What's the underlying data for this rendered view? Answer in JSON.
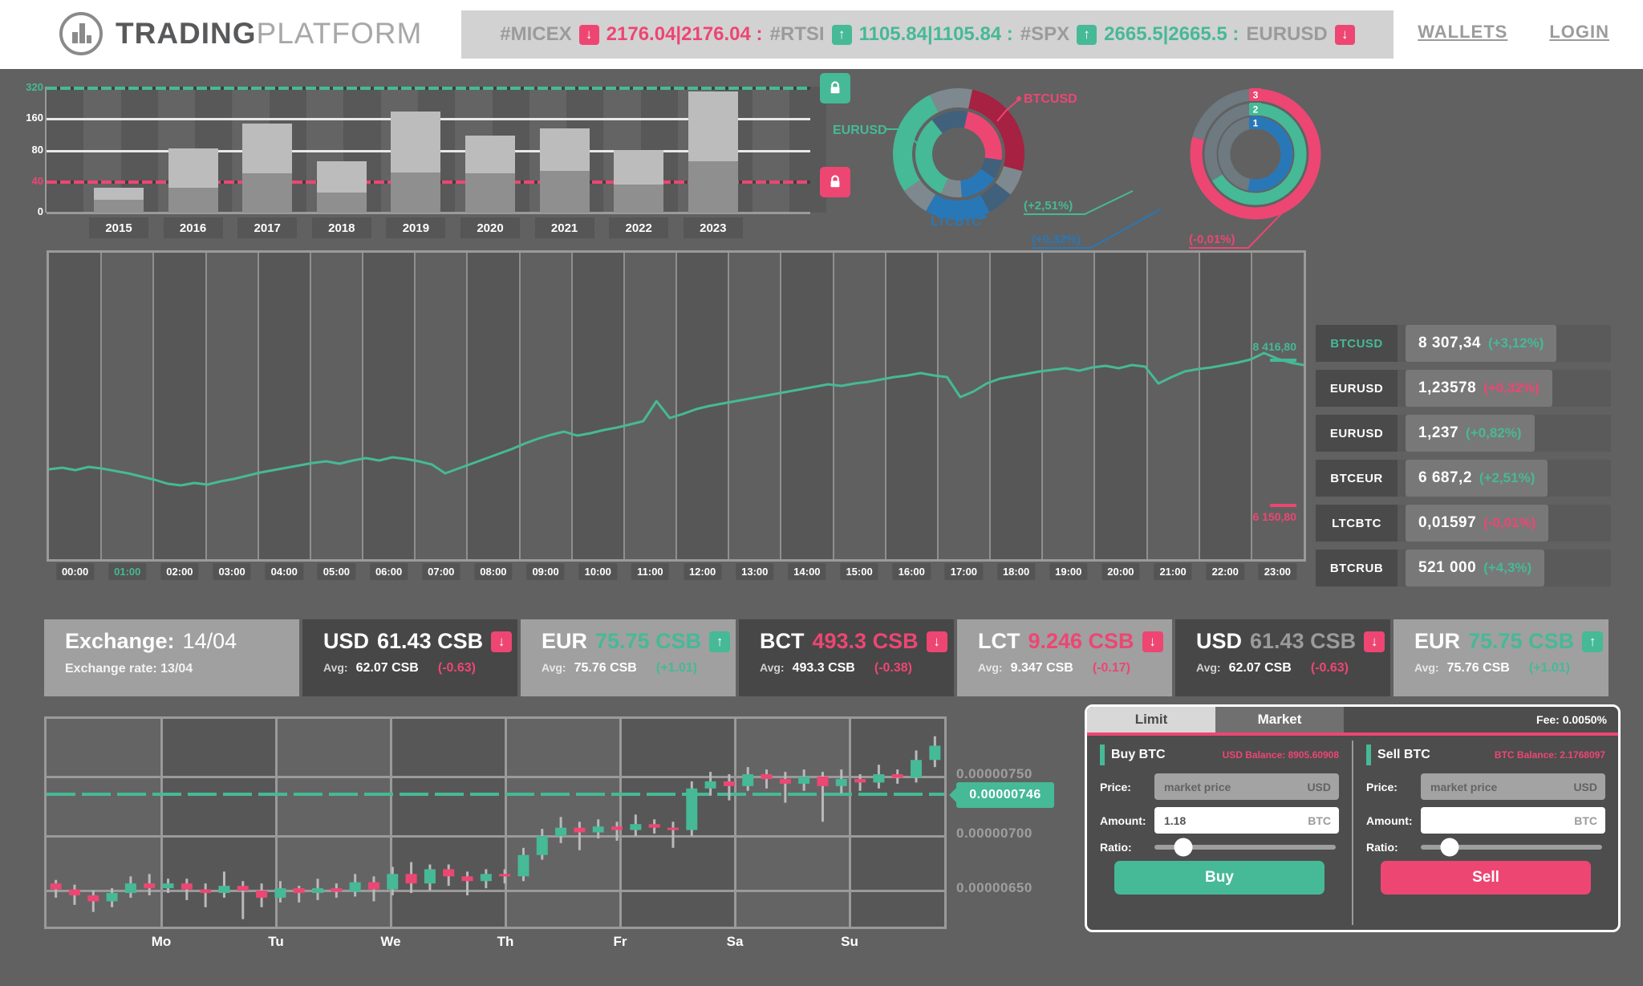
{
  "colors": {
    "teal": "#46B996",
    "pink": "#ED4673",
    "crimson": "#A62142",
    "blue": "#2878B8",
    "slate": "#41607C",
    "graysec": "#7E898F"
  },
  "header": {
    "brand_bold": "TRADING",
    "brand_light": "PLATFORM",
    "ticker": [
      {
        "symbol": "#MICEX",
        "dir": "down",
        "value": "2176.04|2176.04 :"
      },
      {
        "symbol": "#RTSI",
        "dir": "up",
        "value": "1105.84|1105.84 :"
      },
      {
        "symbol": "#SPX",
        "dir": "up",
        "value": "2665.5|2665.5 :"
      },
      {
        "symbol": "EURUSD",
        "dir": "down",
        "value": ""
      }
    ],
    "links": [
      "WALLETS",
      "LOGIN"
    ]
  },
  "bar_chart": {
    "type": "bar",
    "categories": [
      "2015",
      "2016",
      "2017",
      "2018",
      "2019",
      "2020",
      "2021",
      "2022",
      "2023"
    ],
    "total_pct": [
      20,
      51,
      71,
      41,
      80,
      61,
      67,
      50,
      96
    ],
    "light_pct": [
      10,
      31,
      40,
      25,
      48,
      30,
      34,
      28,
      55
    ],
    "y_ticks": [
      {
        "label": "320",
        "color": "teal",
        "style": "dashed",
        "pos": 2
      },
      {
        "label": "160",
        "color": "white",
        "style": "solid",
        "pos": 40
      },
      {
        "label": "80",
        "color": "white",
        "style": "solid",
        "pos": 80
      },
      {
        "label": "40",
        "color": "pink",
        "style": "dashed",
        "pos": 119
      },
      {
        "label": "0",
        "color": "white",
        "style": "axis",
        "pos": 157
      }
    ],
    "locks": [
      {
        "color": "teal",
        "name": "lock-high"
      },
      {
        "color": "pink",
        "name": "lock-low"
      }
    ]
  },
  "donut_left": {
    "type": "pie",
    "outer": [
      {
        "color": "crimson",
        "a0": 12,
        "a1": 105
      },
      {
        "color": "graysec",
        "a0": 105,
        "a1": 128
      },
      {
        "color": "slate",
        "a0": 128,
        "a1": 152
      },
      {
        "color": "blue",
        "a0": 152,
        "a1": 210
      },
      {
        "color": "graysec",
        "a0": 210,
        "a1": 236
      },
      {
        "color": "teal",
        "a0": 236,
        "a1": 334
      },
      {
        "color": "graysec",
        "a0": 334,
        "a1": 372
      }
    ],
    "inner": [
      {
        "color": "pink",
        "a0": 12,
        "a1": 98
      },
      {
        "color": "slate",
        "a0": 98,
        "a1": 124
      },
      {
        "color": "blue",
        "a0": 124,
        "a1": 176
      },
      {
        "color": "graysec",
        "a0": 176,
        "a1": 204
      },
      {
        "color": "teal",
        "a0": 204,
        "a1": 322
      },
      {
        "color": "slate",
        "a0": 322,
        "a1": 372
      }
    ],
    "labels": [
      {
        "text": "EURUSD",
        "color": "teal"
      },
      {
        "text": "BTCUSD",
        "color": "pink"
      },
      {
        "text": "LTCBTC",
        "color": "blue"
      }
    ]
  },
  "donut_right": {
    "type": "radial",
    "rings": [
      {
        "index": "3",
        "color": "pink",
        "sweep": 285,
        "r": 74
      },
      {
        "index": "2",
        "color": "teal",
        "sweep": 238,
        "r": 56
      },
      {
        "index": "1",
        "color": "blue",
        "sweep": 192,
        "r": 39
      }
    ],
    "callouts": [
      {
        "text": "(+2,51%)",
        "color": "teal"
      },
      {
        "text": "(+0,32%)",
        "color": "blue"
      },
      {
        "text": "(-0,01%)",
        "color": "pink"
      }
    ]
  },
  "line_chart": {
    "type": "line",
    "times": [
      "00:00",
      "01:00",
      "02:00",
      "03:00",
      "04:00",
      "05:00",
      "06:00",
      "07:00",
      "08:00",
      "09:00",
      "10:00",
      "11:00",
      "12:00",
      "13:00",
      "14:00",
      "15:00",
      "16:00",
      "17:00",
      "18:00",
      "19:00",
      "20:00",
      "21:00",
      "22:00",
      "23:00"
    ],
    "active_time": "01:00",
    "high_label": "8 416,80",
    "low_label": "6 150,80",
    "values_y": [
      585,
      583,
      586,
      582,
      584,
      587,
      590,
      594,
      598,
      603,
      605,
      602,
      604,
      600,
      597,
      593,
      589,
      586,
      583,
      580,
      577,
      575,
      578,
      574,
      571,
      574,
      570,
      572,
      575,
      579,
      590,
      584,
      578,
      572,
      566,
      560,
      553,
      547,
      542,
      538,
      543,
      540,
      536,
      533,
      529,
      525,
      500,
      521,
      516,
      510,
      506,
      503,
      500,
      497,
      494,
      491,
      488,
      485,
      482,
      479,
      481,
      478,
      476,
      473,
      470,
      468,
      465,
      468,
      470,
      495,
      488,
      478,
      472,
      469,
      466,
      463,
      461,
      459,
      462,
      458,
      456,
      459,
      455,
      457,
      478,
      470,
      463,
      460,
      458,
      455,
      452,
      448,
      440,
      447,
      452,
      455
    ]
  },
  "watchlist": [
    {
      "pair": "BTCUSD",
      "pair_color": "teal",
      "value": "8 307,34",
      "change": "(+3,12%)",
      "change_color": "teal"
    },
    {
      "pair": "EURUSD",
      "pair_color": "white",
      "value": "1,23578",
      "change": "(+0,32%)",
      "change_color": "pink"
    },
    {
      "pair": "EURUSD",
      "pair_color": "white",
      "value": "1,237",
      "change": "(+0,82%)",
      "change_color": "teal"
    },
    {
      "pair": "BTCEUR",
      "pair_color": "white",
      "value": "6 687,2",
      "change": "(+2,51%)",
      "change_color": "teal"
    },
    {
      "pair": "LTCBTC",
      "pair_color": "white",
      "value": "0,01597",
      "change": "(-0,01%)",
      "change_color": "pink"
    },
    {
      "pair": "BTCRUB",
      "pair_color": "white",
      "value": "521 000",
      "change": "(+4,3%)",
      "change_color": "teal"
    }
  ],
  "exchange": {
    "title_label": "Exchange:",
    "title_date": "14/04",
    "subtitle": "Exchange rate: 13/04",
    "avg_label": "Avg:",
    "cells": [
      {
        "symbol": "USD",
        "value": "61.43 CSB",
        "value_color": "white",
        "dir": "down",
        "avg": "62.07 CSB",
        "delta": "(-0.63)",
        "delta_color": "pink",
        "dark": true
      },
      {
        "symbol": "EUR",
        "value": "75.75 CSB",
        "value_color": "teal",
        "dir": "up",
        "avg": "75.76 CSB",
        "delta": "(+1.01)",
        "delta_color": "teal",
        "dark": false
      },
      {
        "symbol": "BCT",
        "value": "493.3 CSB",
        "value_color": "pink",
        "dir": "down",
        "avg": "493.3 CSB",
        "delta": "(-0.38)",
        "delta_color": "pink",
        "dark": true
      },
      {
        "symbol": "LCT",
        "value": "9.246 CSB",
        "value_color": "pink",
        "dir": "down",
        "avg": "9.347 CSB",
        "delta": "(-0.17)",
        "delta_color": "pink",
        "dark": false
      },
      {
        "symbol": "USD",
        "value": "61.43 CSB",
        "value_color": "gray",
        "dir": "down",
        "avg": "62.07 CSB",
        "delta": "(-0.63)",
        "delta_color": "pink",
        "dark": true
      },
      {
        "symbol": "EUR",
        "value": "75.75 CSB",
        "value_color": "teal",
        "dir": "up",
        "avg": "75.76 CSB",
        "delta": "(+1.01)",
        "delta_color": "teal",
        "dark": false
      }
    ]
  },
  "candle_chart": {
    "type": "candlestick",
    "days": [
      "Mo",
      "Tu",
      "We",
      "Th",
      "Fr",
      "Sa",
      "Su"
    ],
    "y_labels": [
      "0.00000750",
      "0.00000700",
      "0.00000650"
    ],
    "current_price": "0.00000746",
    "candles": [
      [
        660,
        655,
        648,
        663
      ],
      [
        655,
        650,
        642,
        659
      ],
      [
        650,
        645,
        636,
        654
      ],
      [
        645,
        652,
        640,
        656
      ],
      [
        652,
        660,
        648,
        666
      ],
      [
        660,
        656,
        650,
        668
      ],
      [
        656,
        660,
        652,
        664
      ],
      [
        660,
        655,
        646,
        664
      ],
      [
        655,
        652,
        640,
        660
      ],
      [
        652,
        658,
        648,
        670
      ],
      [
        658,
        654,
        630,
        662
      ],
      [
        654,
        648,
        640,
        660
      ],
      [
        648,
        656,
        644,
        662
      ],
      [
        656,
        652,
        644,
        658
      ],
      [
        652,
        656,
        646,
        664
      ],
      [
        656,
        653,
        648,
        660
      ],
      [
        653,
        661,
        649,
        668
      ],
      [
        661,
        655,
        645,
        666
      ],
      [
        655,
        668,
        650,
        674
      ],
      [
        668,
        660,
        652,
        678
      ],
      [
        660,
        672,
        654,
        676
      ],
      [
        672,
        666,
        658,
        676
      ],
      [
        666,
        662,
        650,
        670
      ],
      [
        662,
        668,
        656,
        672
      ],
      [
        668,
        666,
        660,
        672
      ],
      [
        666,
        684,
        662,
        690
      ],
      [
        684,
        700,
        680,
        706
      ],
      [
        700,
        707,
        694,
        716
      ],
      [
        707,
        703,
        688,
        712
      ],
      [
        703,
        708,
        698,
        714
      ],
      [
        708,
        705,
        696,
        712
      ],
      [
        705,
        710,
        700,
        718
      ],
      [
        710,
        707,
        702,
        714
      ],
      [
        707,
        705,
        690,
        712
      ],
      [
        705,
        740,
        700,
        746
      ],
      [
        740,
        746,
        734,
        754
      ],
      [
        746,
        742,
        730,
        752
      ],
      [
        742,
        752,
        738,
        758
      ],
      [
        752,
        748,
        740,
        756
      ],
      [
        748,
        744,
        728,
        754
      ],
      [
        744,
        750,
        738,
        756
      ],
      [
        750,
        742,
        712,
        754
      ],
      [
        742,
        748,
        736,
        756
      ],
      [
        748,
        745,
        738,
        752
      ],
      [
        745,
        752,
        740,
        760
      ],
      [
        752,
        749,
        744,
        756
      ],
      [
        749,
        764,
        745,
        772
      ],
      [
        764,
        776,
        758,
        784
      ]
    ]
  },
  "trade": {
    "tabs": [
      "Limit",
      "Market"
    ],
    "active_tab": "Limit",
    "fee": "Fee: 0.0050%",
    "buy": {
      "title": "Buy BTC",
      "balance": "USD Balance: 8905.60908",
      "price_label": "Price:",
      "price_placeholder": "market price",
      "price_unit": "USD",
      "amount_label": "Amount:",
      "amount_value": "1.18",
      "amount_unit": "BTC",
      "ratio_label": "Ratio:",
      "button": "Buy"
    },
    "sell": {
      "title": "Sell BTC",
      "balance": "BTC Balance: 2.1768097",
      "price_label": "Price:",
      "price_placeholder": "market price",
      "price_unit": "USD",
      "amount_label": "Amount:",
      "amount_value": "",
      "amount_unit": "BTC",
      "ratio_label": "Ratio:",
      "button": "Sell"
    }
  }
}
